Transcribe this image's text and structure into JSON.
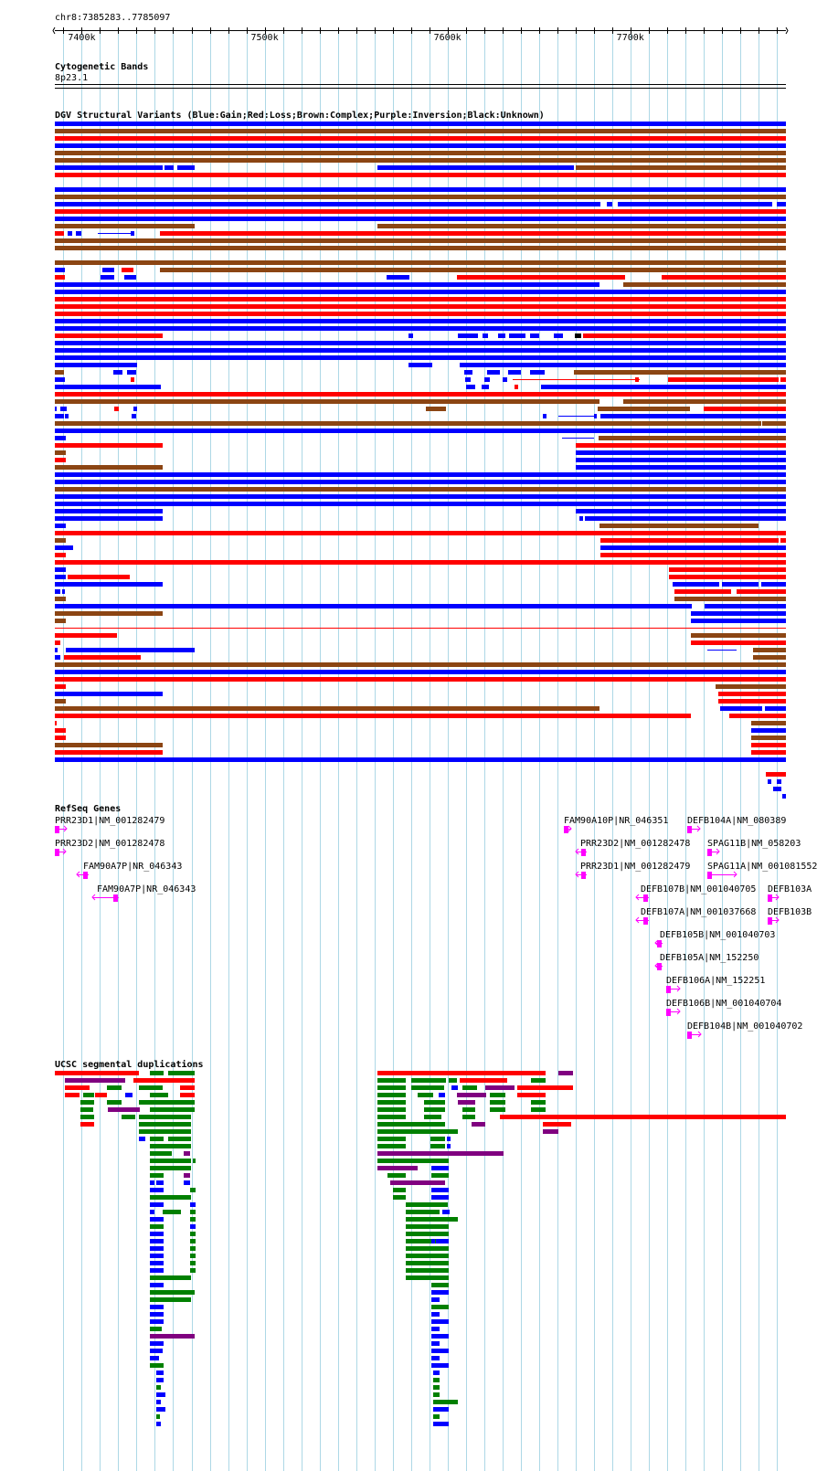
{
  "region": "chr8:7385283..7785097",
  "ruler": {
    "ticks": [
      {
        "pos": 7400000,
        "label": "7400k"
      },
      {
        "pos": 7500000,
        "label": "7500k"
      },
      {
        "pos": 7600000,
        "label": "7600k"
      },
      {
        "pos": 7700000,
        "label": "7700k"
      }
    ]
  },
  "tracks": {
    "cytoband": {
      "title": "Cytogenetic Bands",
      "band": "8p23.1"
    },
    "dgv": {
      "title": "DGV Structural Variants (Blue:Gain;Red:Loss;Brown:Complex;Purple:Inversion;Black:Unknown)"
    },
    "refseq": {
      "title": "RefSeq Genes"
    },
    "segdup": {
      "title": "UCSC segmental duplications"
    }
  },
  "colors": {
    "gain": "#0000ff",
    "loss": "#ff0000",
    "complex": "#8b4513",
    "inversion": "#800080",
    "unknown": "#000000",
    "segdup_green": "#008000",
    "gene": "#ff00ff",
    "grid": "#add8e6"
  },
  "genes": [
    {
      "label": "PRR23D1|NM_001282479",
      "strand": "+"
    },
    {
      "label": "PRR23D2|NM_001282478",
      "strand": "+"
    },
    {
      "label": "FAM90A7P|NR_046343",
      "strand": "-"
    },
    {
      "label": "FAM90A7P|NR_046343",
      "strand": "-"
    },
    {
      "label": "FAM90A10P|NR_046351",
      "strand": "+"
    },
    {
      "label": "PRR23D2|NM_001282478",
      "strand": "-"
    },
    {
      "label": "PRR23D1|NM_001282479",
      "strand": "-"
    },
    {
      "label": "DEFB104A|NM_080389",
      "strand": "+"
    },
    {
      "label": "SPAG11B|NM_058203",
      "strand": "+"
    },
    {
      "label": "SPAG11A|NM_001081552",
      "strand": "+"
    },
    {
      "label": "DEFB107B|NM_001040705",
      "strand": "-"
    },
    {
      "label": "DEFB107A|NM_001037668",
      "strand": "-"
    },
    {
      "label": "DEFB103A",
      "strand": "+"
    },
    {
      "label": "DEFB103B",
      "strand": "+"
    },
    {
      "label": "DEFB105B|NM_001040703",
      "strand": "-"
    },
    {
      "label": "DEFB105A|NM_152250",
      "strand": "-"
    },
    {
      "label": "DEFB106A|NM_152251",
      "strand": "+"
    },
    {
      "label": "DEFB106B|NM_001040704",
      "strand": "+"
    },
    {
      "label": "DEFB104B|NM_001040702",
      "strand": "+"
    }
  ]
}
